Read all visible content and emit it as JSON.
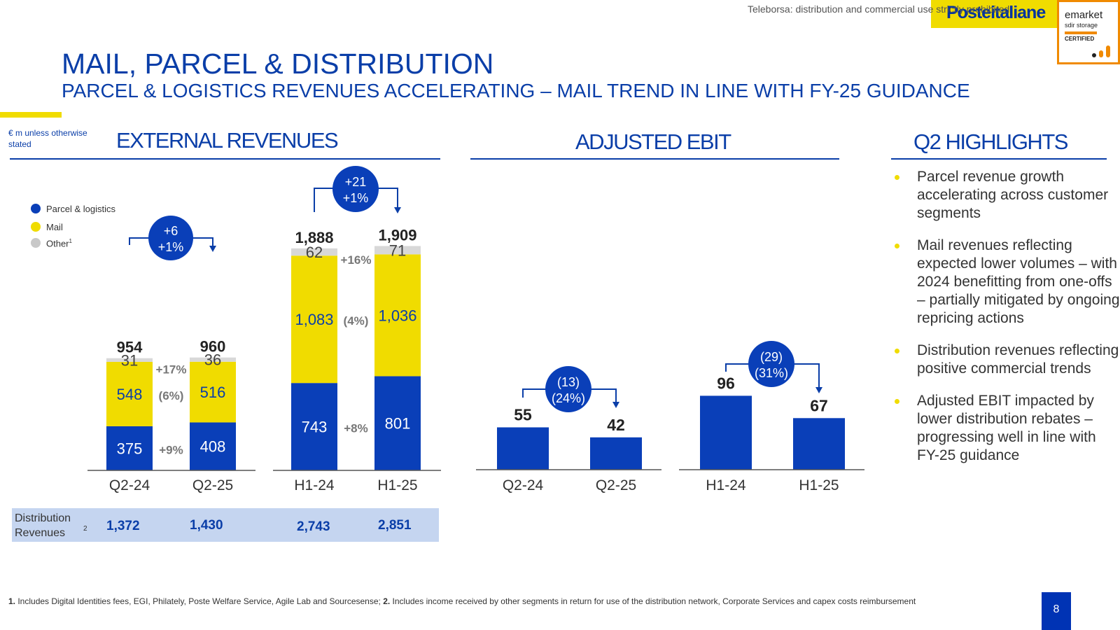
{
  "header": {
    "top_note": "Teleborsa: distribution and commercial use strictly prohibited",
    "brand": "Posteitaliane",
    "emarket": {
      "line1": "emarket",
      "line2": "sdir storage",
      "line3": "CERTIFIED"
    },
    "title": "MAIL, PARCEL & DISTRIBUTION",
    "subtitle": "PARCEL & LOGISTICS REVENUES ACCELERATING – MAIL TREND IN LINE WITH FY-25 GUIDANCE",
    "units": "€ m unless otherwise stated"
  },
  "sections": {
    "external_revenues": "EXTERNAL REVENUES",
    "adjusted_ebit": "ADJUSTED EBIT",
    "q2_highlights": "Q2 HIGHLIGHTS"
  },
  "legend": [
    {
      "label": "Parcel & logistics",
      "color": "#0a3fb8"
    },
    {
      "label": "Mail",
      "color": "#f0dc00"
    },
    {
      "label": "Other",
      "sup": "1",
      "color": "#c8c8c8"
    }
  ],
  "chart_data": [
    {
      "type": "bar",
      "title": "EXTERNAL REVENUES",
      "stacked": true,
      "categories": [
        "Q2-24",
        "Q2-25",
        "H1-24",
        "H1-25"
      ],
      "series": [
        {
          "name": "Parcel & logistics",
          "values": [
            375,
            408,
            743,
            801
          ],
          "color": "#0a3fb8"
        },
        {
          "name": "Mail",
          "values": [
            548,
            516,
            1083,
            1036
          ],
          "color": "#f0dc00"
        },
        {
          "name": "Other",
          "values": [
            31,
            36,
            62,
            71
          ],
          "color": "#d8d8d8"
        }
      ],
      "value_labels": {
        "parcel": [
          "375",
          "408",
          "743",
          "801"
        ],
        "mail": [
          "548",
          "516",
          "1,083",
          "1,036"
        ],
        "other": [
          "31",
          "36",
          "62",
          "71"
        ]
      },
      "totals": [
        954,
        960,
        1888,
        1909
      ],
      "total_labels": [
        "954",
        "960",
        "1,888",
        "1,909"
      ],
      "growth": {
        "q2": {
          "parcel": "+9%",
          "mail": "(6%)",
          "other": "+17%",
          "bubble": [
            "+6",
            "+1%"
          ]
        },
        "h1": {
          "parcel": "+8%",
          "mail": "(4%)",
          "other": "+16%",
          "bubble": [
            "+21",
            "+1%"
          ]
        }
      },
      "distribution_revenues": {
        "label": "Distribution Revenues",
        "sup": "2",
        "values": [
          "1,372",
          "1,430",
          "2,743",
          "2,851"
        ]
      }
    },
    {
      "type": "bar",
      "title": "ADJUSTED EBIT",
      "categories": [
        "Q2-24",
        "Q2-25",
        "H1-24",
        "H1-25"
      ],
      "values": [
        55,
        42,
        96,
        67
      ],
      "value_labels": [
        "55",
        "42",
        "96",
        "67"
      ],
      "color": "#0a3fb8",
      "bubbles": {
        "q2": [
          "(13)",
          "(24%)"
        ],
        "h1": [
          "(29)",
          "(31%)"
        ]
      }
    }
  ],
  "highlights": [
    "Parcel revenue growth accelerating across customer segments",
    "Mail revenues reflecting expected lower volumes – with 2024 benefitting from one-offs – partially mitigated by ongoing repricing actions",
    "Distribution revenues reflecting positive commercial trends",
    "Adjusted EBIT impacted by lower distribution rebates – progressing well in line with FY-25 guidance"
  ],
  "footnote": {
    "n1": "1.",
    "t1": " Includes Digital Identities fees, EGI, Philately, Poste Welfare Service, Agile Lab and Sourcesense; ",
    "n2": "2.",
    "t2": " Includes income received by other segments in return for use of the distribution network, Corporate Services and capex costs reimbursement"
  },
  "page_number": "8"
}
